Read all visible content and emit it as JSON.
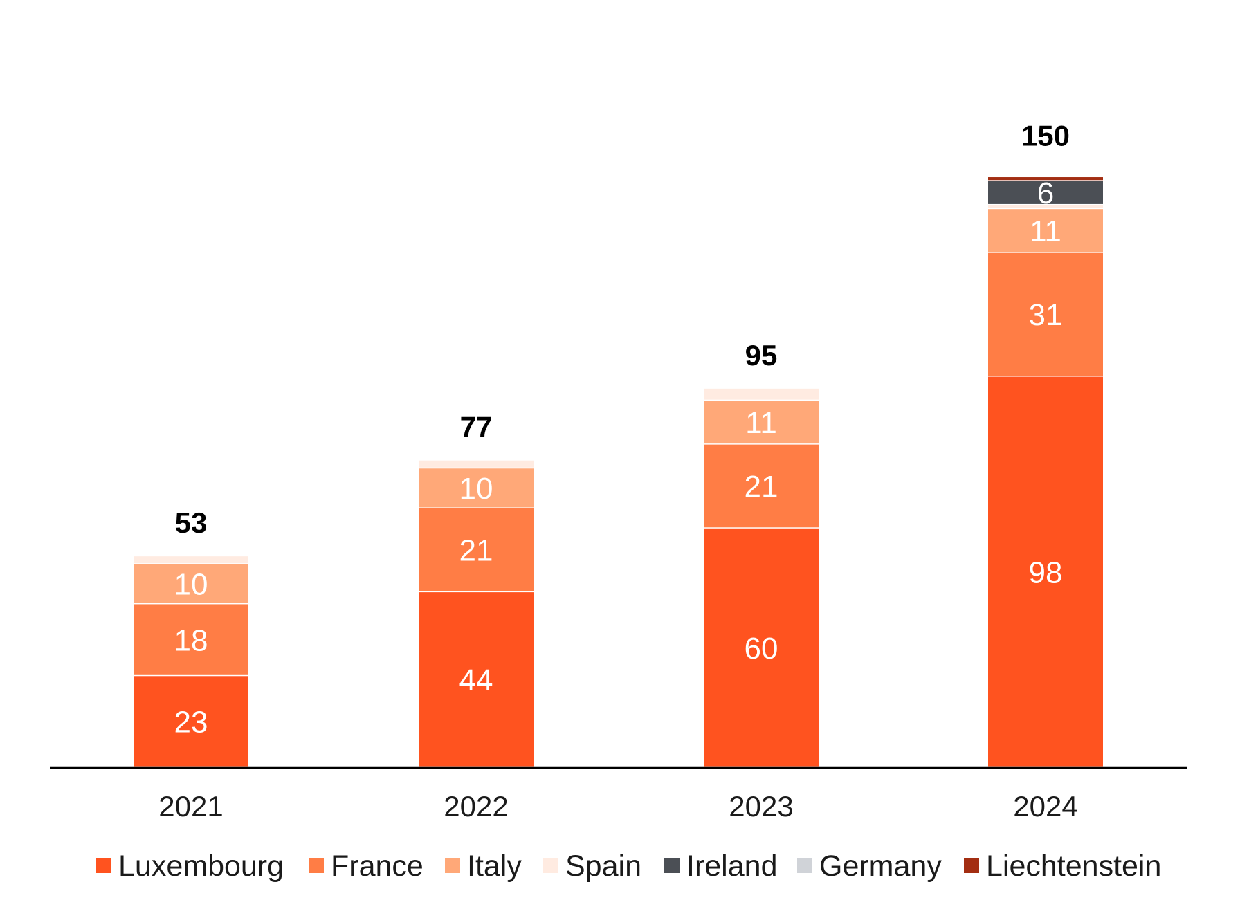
{
  "chart_data": {
    "type": "bar",
    "stacked": true,
    "title": "",
    "xlabel": "",
    "ylabel": "",
    "ylim": [
      0,
      150
    ],
    "grid": false,
    "legend_position": "bottom",
    "categories": [
      "2021",
      "2022",
      "2023",
      "2024"
    ],
    "totals": [
      53,
      77,
      95,
      150
    ],
    "series": [
      {
        "name": "Luxembourg",
        "color": "#FF531F",
        "values": [
          23,
          44,
          60,
          98
        ]
      },
      {
        "name": "France",
        "color": "#FF7D45",
        "values": [
          18,
          21,
          21,
          31
        ]
      },
      {
        "name": "Italy",
        "color": "#FFA878",
        "values": [
          10,
          10,
          11,
          11
        ]
      },
      {
        "name": "Spain",
        "color": "#FFEBE1",
        "values": [
          2,
          2,
          3,
          1
        ]
      },
      {
        "name": "Ireland",
        "color": "#4B4F55",
        "values": [
          0,
          0,
          0,
          6
        ]
      },
      {
        "name": "Germany",
        "color": "#D0D3D8",
        "values": [
          0,
          0,
          0,
          0
        ]
      },
      {
        "name": "Liechtenstein",
        "color": "#A32E12",
        "values": [
          0,
          0,
          0,
          1
        ]
      }
    ],
    "segment_labels": {
      "Luxembourg": [
        "23",
        "44",
        "60",
        "98"
      ],
      "France": [
        "18",
        "21",
        "21",
        "31"
      ],
      "Italy": [
        "10",
        "10",
        "11",
        "11"
      ],
      "Ireland": [
        "",
        "",
        "",
        "6"
      ]
    }
  }
}
